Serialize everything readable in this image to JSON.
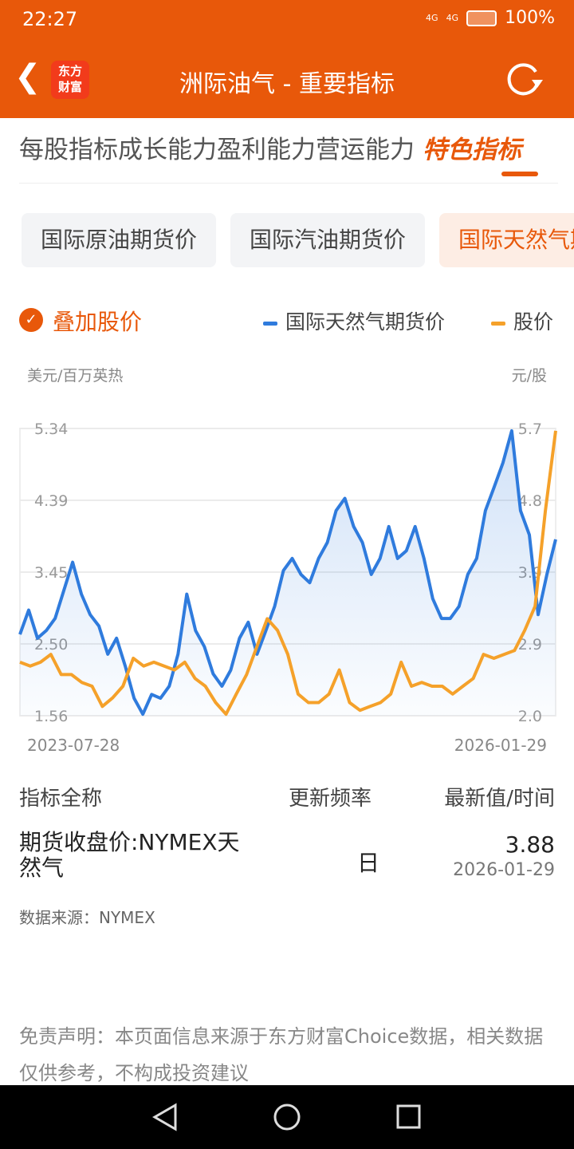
{
  "status": {
    "time": "22:27",
    "signal1": "4G",
    "signal2": "4G",
    "battery": "100%"
  },
  "header": {
    "logo_line1": "东方",
    "logo_line2": "财富",
    "title": "洲际油气 - 重要指标"
  },
  "tabs": [
    "每股指标",
    "成长能力",
    "盈利能力",
    "营运能力",
    "特色指标"
  ],
  "active_tab": "特色指标",
  "pills": [
    "国际原油期货价",
    "国际汽油期货价",
    "国际天然气期货价"
  ],
  "selected_pill": "国际天然气期货价",
  "legend": {
    "overlay_label": "叠加股价",
    "overlay_checked": true,
    "series1": "国际天然气期货价",
    "series2": "股价"
  },
  "colors": {
    "accent": "#E8580A",
    "series1": "#2F7BDD",
    "series2": "#F5A12A"
  },
  "chart_data": {
    "type": "line",
    "left_unit": "美元/百万英热",
    "right_unit": "元/股",
    "x_start": "2023-07-28",
    "x_end": "2026-01-29",
    "left_ticks": [
      "5.34",
      "4.39",
      "3.45",
      "2.50",
      "1.56"
    ],
    "left_range": [
      1.56,
      5.34
    ],
    "right_ticks": [
      "5.7",
      "4.8",
      "3.9",
      "2.9",
      "2.0"
    ],
    "right_range": [
      2.0,
      5.7
    ],
    "grid": true,
    "series": [
      {
        "name": "国际天然气期货价",
        "axis": "left",
        "values": [
          2.63,
          2.95,
          2.58,
          2.68,
          2.84,
          3.21,
          3.58,
          3.16,
          2.89,
          2.74,
          2.37,
          2.58,
          2.21,
          1.79,
          1.58,
          1.84,
          1.79,
          1.95,
          2.37,
          3.16,
          2.68,
          2.47,
          2.11,
          1.95,
          2.16,
          2.58,
          2.79,
          2.37,
          2.68,
          3.0,
          3.47,
          3.63,
          3.42,
          3.31,
          3.63,
          3.84,
          4.26,
          4.42,
          4.05,
          3.84,
          3.42,
          3.63,
          4.05,
          3.63,
          3.73,
          4.05,
          3.63,
          3.1,
          2.84,
          2.84,
          3.0,
          3.42,
          3.63,
          4.26,
          4.57,
          4.89,
          5.31,
          4.26,
          3.94,
          2.89,
          3.42,
          3.88
        ]
      },
      {
        "name": "股价",
        "axis": "right",
        "values": [
          2.69,
          2.64,
          2.69,
          2.79,
          2.53,
          2.53,
          2.43,
          2.38,
          2.12,
          2.23,
          2.38,
          2.74,
          2.64,
          2.69,
          2.64,
          2.59,
          2.69,
          2.48,
          2.38,
          2.17,
          2.02,
          2.28,
          2.53,
          2.89,
          3.25,
          3.1,
          2.79,
          2.28,
          2.17,
          2.17,
          2.28,
          2.59,
          2.17,
          2.07,
          2.12,
          2.17,
          2.28,
          2.69,
          2.38,
          2.43,
          2.38,
          2.38,
          2.28,
          2.38,
          2.48,
          2.79,
          2.74,
          2.79,
          2.84,
          3.1,
          3.41,
          4.64,
          5.67
        ]
      }
    ]
  },
  "table": {
    "headers": [
      "指标全称",
      "更新频率",
      "最新值/时间"
    ],
    "row": {
      "name": "期货收盘价:NYMEX天然气",
      "freq": "日",
      "value": "3.88",
      "date": "2026-01-29"
    }
  },
  "source": "数据来源：NYMEX",
  "disclaimer": "免责声明：本页面信息来源于东方财富Choice数据，相关数据仅供参考，不构成投资建议"
}
